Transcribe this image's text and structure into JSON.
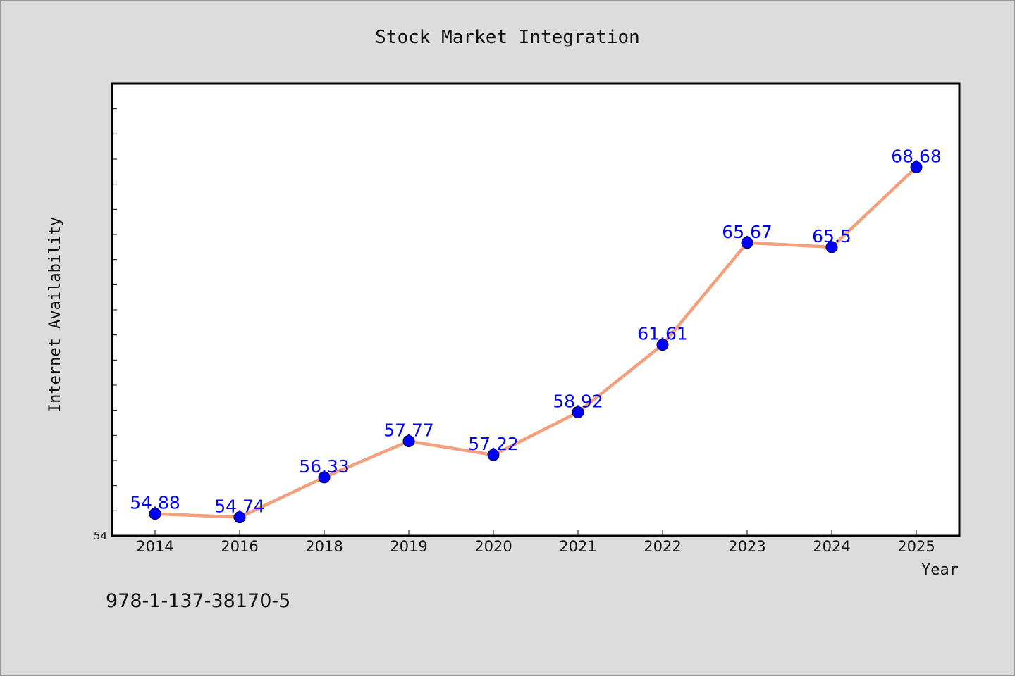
{
  "chart_data": {
    "type": "line",
    "title": "Stock Market Integration",
    "xlabel": "Year",
    "ylabel": "Internet Availability",
    "categories": [
      "2014",
      "2016",
      "2018",
      "2019",
      "2020",
      "2021",
      "2022",
      "2023",
      "2024",
      "2025"
    ],
    "series": [
      {
        "values": [
          54.88,
          54.74,
          56.33,
          57.77,
          57.22,
          58.92,
          61.61,
          65.67,
          65.5,
          68.68
        ],
        "data_labels": [
          "54.88",
          "54.74",
          "56.33",
          "57.77",
          "57.22",
          "58.92",
          "61.61",
          "65.67",
          "65.5",
          "68.68"
        ],
        "line_color": "#f4a07c",
        "marker_color": "#0000ff"
      }
    ],
    "ylim": [
      54,
      72
    ],
    "y_tick_labels": [
      "54"
    ],
    "grid": false,
    "legend": "none"
  },
  "annotation": "978-1-137-38170-5",
  "colors": {
    "background": "#dcdcdc",
    "plot_background": "#ffffff",
    "line": "#f4a07c",
    "marker": "#0000ff",
    "data_label": "#0000ff"
  }
}
